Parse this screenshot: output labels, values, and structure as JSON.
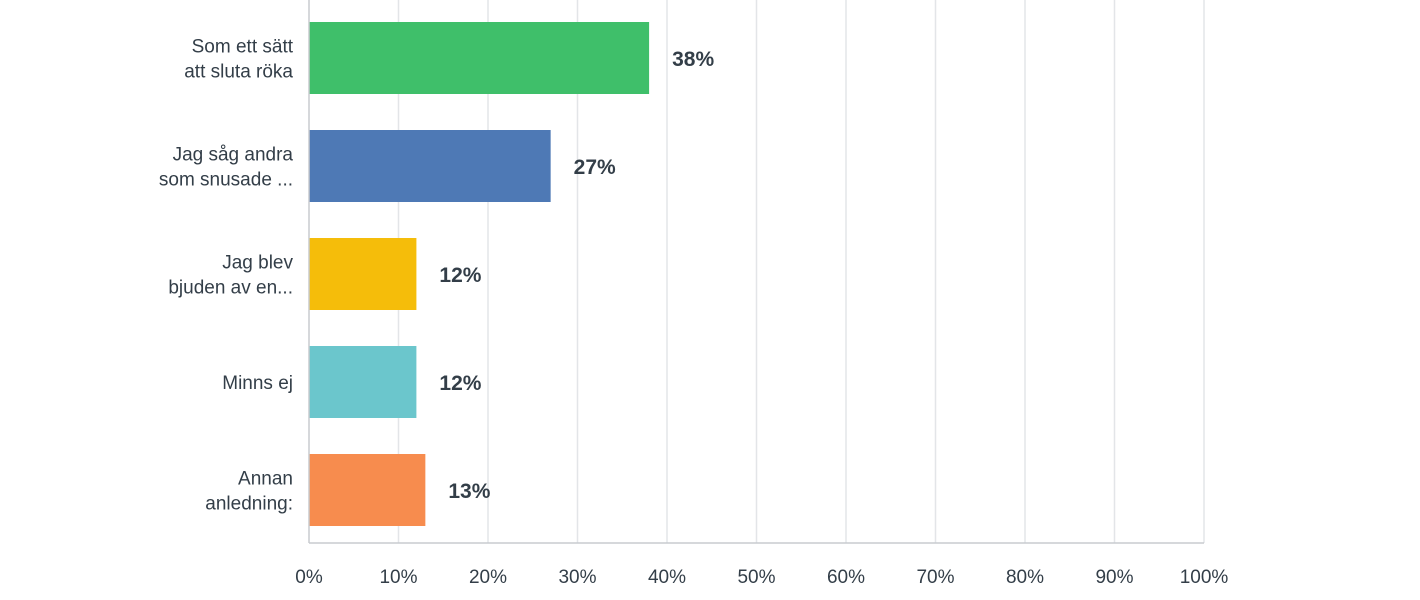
{
  "chart_data": {
    "type": "bar",
    "orientation": "horizontal",
    "categories": [
      [
        "Som ett sätt",
        "att sluta röka"
      ],
      [
        "Jag såg andra",
        "som snusade ..."
      ],
      [
        "Jag blev",
        "bjuden av en..."
      ],
      [
        "Minns ej"
      ],
      [
        "Annan",
        "anledning:"
      ]
    ],
    "values": [
      38,
      27,
      12,
      12,
      13
    ],
    "value_labels": [
      "38%",
      "27%",
      "12%",
      "12%",
      "13%"
    ],
    "colors": [
      "#3fbf6a",
      "#4e79b5",
      "#f5bd0a",
      "#6bc6cc",
      "#f78c4e"
    ],
    "xlim": [
      0,
      100
    ],
    "x_ticks": [
      0,
      10,
      20,
      30,
      40,
      50,
      60,
      70,
      80,
      90,
      100
    ],
    "x_tick_labels": [
      "0%",
      "10%",
      "20%",
      "30%",
      "40%",
      "50%",
      "60%",
      "70%",
      "80%",
      "90%",
      "100%"
    ],
    "grid": true,
    "title": "",
    "xlabel": "",
    "ylabel": ""
  }
}
